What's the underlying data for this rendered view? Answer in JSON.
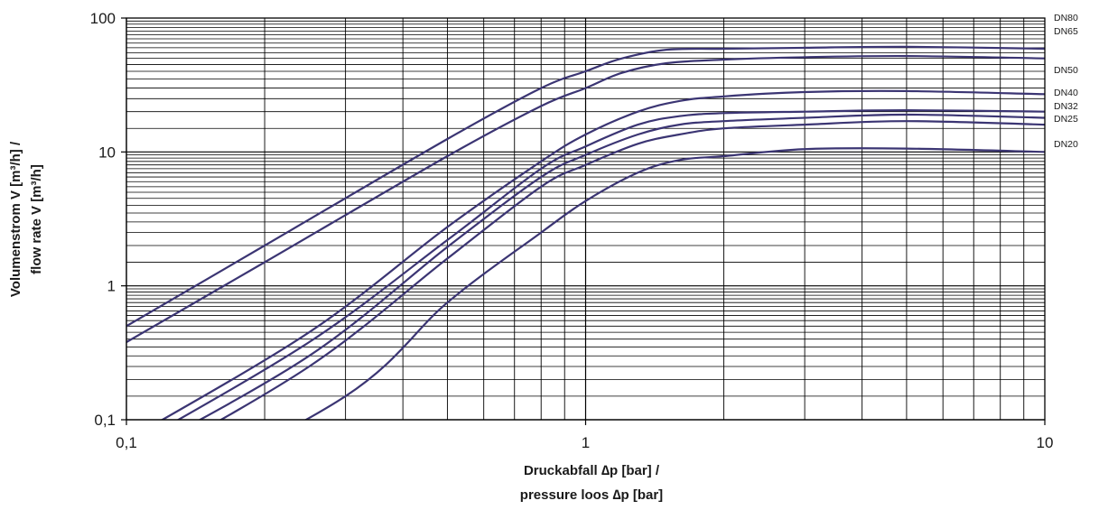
{
  "chart_data": {
    "type": "line",
    "x_scale": "log",
    "y_scale": "log",
    "xlim": [
      0.1,
      10
    ],
    "ylim": [
      0.1,
      100
    ],
    "grid": true,
    "x_ticks": [
      {
        "value": 0.1,
        "label": "0,1"
      },
      {
        "value": 1,
        "label": "1"
      },
      {
        "value": 10,
        "label": "10"
      }
    ],
    "y_ticks": [
      {
        "value": 100,
        "label": "100"
      },
      {
        "value": 10,
        "label": "10"
      },
      {
        "value": 1,
        "label": "1"
      },
      {
        "value": 0.1,
        "label": "0,1"
      }
    ],
    "xlabel_lines": [
      "Druckabfall ∆p [bar] /",
      "pressure loos ∆p [bar]"
    ],
    "ylabel_lines": [
      "Volumenstrom V [m³/h] /",
      "flow rate V [m³/h]"
    ],
    "line_color": "#3b3573",
    "series": [
      {
        "name": "DN80",
        "x": [
          0.1,
          0.2,
          0.5,
          0.8,
          1.0,
          1.2,
          1.5,
          2,
          3,
          5,
          10
        ],
        "y": [
          0.5,
          2.0,
          12.5,
          30,
          40,
          50,
          58,
          59,
          60,
          61,
          59
        ]
      },
      {
        "name": "DN65",
        "x": [
          0.1,
          0.2,
          0.5,
          0.8,
          1.0,
          1.2,
          1.5,
          2,
          3,
          5,
          10
        ],
        "y": [
          0.38,
          1.5,
          9.3,
          22,
          30,
          39,
          46,
          49,
          51,
          52,
          50
        ]
      },
      {
        "name": "DN50",
        "x": [
          0.1,
          0.25,
          0.5,
          0.8,
          1.0,
          1.3,
          1.6,
          2,
          3,
          5,
          10
        ],
        "y": [
          0.07,
          0.45,
          2.75,
          8.5,
          13.5,
          20,
          24,
          26,
          28,
          28.5,
          27
        ]
      },
      {
        "name": "DN40",
        "x": [
          0.1,
          0.25,
          0.5,
          0.8,
          1.0,
          1.3,
          1.6,
          2,
          3,
          5,
          10
        ],
        "y": [
          0.06,
          0.38,
          2.2,
          7.5,
          11,
          16,
          18.5,
          19.5,
          20,
          20.5,
          20
        ]
      },
      {
        "name": "DN32",
        "x": [
          0.1,
          0.25,
          0.5,
          0.8,
          1.0,
          1.3,
          1.6,
          2,
          3,
          5,
          10
        ],
        "y": [
          0.05,
          0.3,
          1.95,
          6.5,
          9.5,
          13.5,
          16,
          17,
          18,
          19,
          18
        ]
      },
      {
        "name": "DN25",
        "x": [
          0.1,
          0.25,
          0.5,
          0.8,
          1.0,
          1.3,
          1.6,
          2,
          3,
          5,
          10
        ],
        "y": [
          0.04,
          0.25,
          1.6,
          5.5,
          8,
          11.5,
          13.5,
          15,
          16,
          17,
          16
        ]
      },
      {
        "name": "DN20",
        "x": [
          0.1,
          0.3,
          0.5,
          0.8,
          1.0,
          1.3,
          1.6,
          2,
          3,
          5,
          10
        ],
        "y": [
          0.02,
          0.15,
          0.75,
          2.5,
          4.3,
          7,
          8.7,
          9.3,
          10.5,
          10.6,
          10
        ]
      }
    ]
  }
}
